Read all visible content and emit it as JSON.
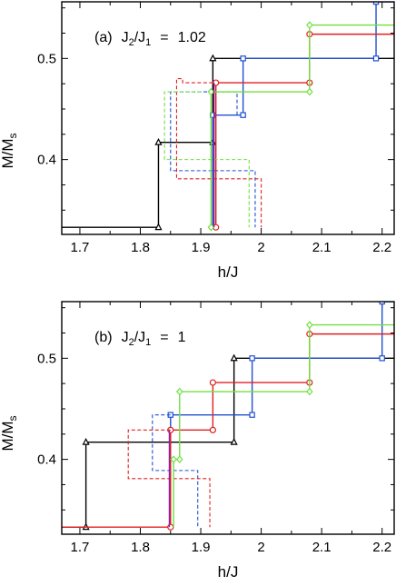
{
  "chart_data": [
    {
      "type": "line",
      "panel": "a",
      "title": {
        "prefix": "(a)",
        "j_main": "J",
        "sub2": "2",
        "slash": "/J",
        "sub1": "1",
        "eq": "=",
        "value": "1.02"
      },
      "xlabel": "h/J",
      "ylabel": {
        "main": "M/M",
        "sub": "s"
      },
      "xlim": [
        1.67,
        2.22
      ],
      "ylim": [
        0.326,
        0.556
      ],
      "xticks": [
        1.7,
        1.8,
        1.9,
        2.0,
        2.1,
        2.2
      ],
      "xtick_labels": [
        "1.7",
        "1.8",
        "1.9",
        "2",
        "2.1",
        "2.2"
      ],
      "yticks": [
        0.4,
        0.5
      ],
      "ytick_labels": [
        "0.4",
        "0.5"
      ],
      "x_minor": 0.05,
      "y_minor": 0.05,
      "series": [
        {
          "color": "#000000",
          "marker": "triangle",
          "dashed": false,
          "x": [
            1.67,
            1.83,
            1.83,
            1.92,
            1.92,
            1.92,
            1.92,
            2.22
          ],
          "y": [
            0.333,
            0.333,
            0.417,
            0.417,
            0.333,
            0.417,
            0.5,
            0.5
          ],
          "markers": [
            [
              1.83,
              0.333
            ],
            [
              1.83,
              0.417
            ],
            [
              1.92,
              0.417
            ],
            [
              1.92,
              0.5
            ]
          ]
        },
        {
          "color": "#2050d0",
          "marker": "square",
          "dashed": false,
          "x": [
            1.92,
            1.92,
            1.97,
            1.97,
            2.19,
            2.19,
            2.22
          ],
          "y": [
            0.333,
            0.444,
            0.444,
            0.5,
            0.5,
            0.556,
            0.556
          ],
          "markers": [
            [
              1.92,
              0.444
            ],
            [
              1.97,
              0.444
            ],
            [
              1.97,
              0.5
            ],
            [
              2.19,
              0.5
            ],
            [
              2.19,
              0.556
            ]
          ]
        },
        {
          "color": "#2050d0",
          "marker": "none",
          "dashed": true,
          "x": [
            1.96,
            1.96,
            1.85,
            1.85,
            1.99,
            1.99
          ],
          "y": [
            0.444,
            0.467,
            0.467,
            0.389,
            0.389,
            0.333
          ],
          "markers": []
        },
        {
          "color": "#e02020",
          "marker": "circle",
          "dashed": false,
          "x": [
            1.925,
            1.925,
            2.08,
            2.08,
            2.22
          ],
          "y": [
            0.333,
            0.476,
            0.476,
            0.524,
            0.524
          ],
          "markers": [
            [
              1.925,
              0.333
            ],
            [
              1.925,
              0.476
            ],
            [
              2.08,
              0.476
            ],
            [
              2.08,
              0.524
            ]
          ]
        },
        {
          "color": "#e02020",
          "marker": "none",
          "dashed": true,
          "x": [
            1.92,
            1.87,
            1.87,
            1.86,
            1.86,
            2.0,
            2.0
          ],
          "y": [
            0.476,
            0.476,
            0.48,
            0.48,
            0.381,
            0.381,
            0.333
          ],
          "markers": []
        },
        {
          "color": "#70e040",
          "marker": "diamond",
          "dashed": false,
          "x": [
            1.917,
            1.917,
            2.08,
            2.08,
            2.22
          ],
          "y": [
            0.333,
            0.467,
            0.467,
            0.533,
            0.533
          ],
          "markers": [
            [
              1.917,
              0.333
            ],
            [
              1.917,
              0.467
            ],
            [
              2.08,
              0.467
            ],
            [
              2.08,
              0.533
            ]
          ]
        },
        {
          "color": "#70e040",
          "marker": "none",
          "dashed": true,
          "x": [
            1.9,
            1.84,
            1.84,
            1.98,
            1.98
          ],
          "y": [
            0.467,
            0.467,
            0.4,
            0.4,
            0.333
          ],
          "markers": []
        },
        {
          "color": "#9020a0",
          "marker": "none",
          "dashed": false,
          "x": [
            1.922,
            1.922
          ],
          "y": [
            0.333,
            0.476
          ],
          "markers": []
        }
      ]
    },
    {
      "type": "line",
      "panel": "b",
      "title": {
        "prefix": "(b)",
        "j_main": "J",
        "sub2": "2",
        "slash": "/J",
        "sub1": "1",
        "eq": "=",
        "value": "1"
      },
      "xlabel": "h/J",
      "ylabel": {
        "main": "M/M",
        "sub": "s"
      },
      "xlim": [
        1.67,
        2.22
      ],
      "ylim": [
        0.326,
        0.556
      ],
      "xticks": [
        1.7,
        1.8,
        1.9,
        2.0,
        2.1,
        2.2
      ],
      "xtick_labels": [
        "1.7",
        "1.8",
        "1.9",
        "2",
        "2.1",
        "2.2"
      ],
      "yticks": [
        0.4,
        0.5
      ],
      "ytick_labels": [
        "0.4",
        "0.5"
      ],
      "x_minor": 0.05,
      "y_minor": 0.05,
      "series": [
        {
          "color": "#000000",
          "marker": "triangle",
          "dashed": false,
          "x": [
            1.67,
            1.71,
            1.71,
            1.955,
            1.955,
            2.22
          ],
          "y": [
            0.333,
            0.333,
            0.417,
            0.417,
            0.5,
            0.5
          ],
          "markers": [
            [
              1.71,
              0.333
            ],
            [
              1.71,
              0.417
            ],
            [
              1.955,
              0.417
            ],
            [
              1.955,
              0.5
            ]
          ]
        },
        {
          "color": "#2050d0",
          "marker": "square",
          "dashed": false,
          "x": [
            1.85,
            1.85,
            1.985,
            1.985,
            2.2,
            2.2,
            2.22
          ],
          "y": [
            0.333,
            0.444,
            0.444,
            0.5,
            0.5,
            0.556,
            0.556
          ],
          "markers": [
            [
              1.85,
              0.444
            ],
            [
              1.985,
              0.444
            ],
            [
              1.985,
              0.5
            ],
            [
              2.2,
              0.5
            ],
            [
              2.2,
              0.556
            ]
          ]
        },
        {
          "color": "#2050d0",
          "marker": "none",
          "dashed": true,
          "x": [
            1.85,
            1.82,
            1.82,
            1.895,
            1.895
          ],
          "y": [
            0.444,
            0.444,
            0.389,
            0.389,
            0.333
          ],
          "markers": []
        },
        {
          "color": "#e02020",
          "marker": "circle",
          "dashed": false,
          "x": [
            1.67,
            1.85,
            1.85,
            1.92,
            1.92,
            2.08,
            2.08,
            2.22
          ],
          "y": [
            0.333,
            0.333,
            0.429,
            0.429,
            0.476,
            0.476,
            0.524,
            0.524
          ],
          "markers": [
            [
              1.85,
              0.333
            ],
            [
              1.85,
              0.429
            ],
            [
              1.92,
              0.429
            ],
            [
              1.92,
              0.476
            ],
            [
              2.08,
              0.476
            ],
            [
              2.08,
              0.524
            ]
          ]
        },
        {
          "color": "#e02020",
          "marker": "none",
          "dashed": true,
          "x": [
            1.85,
            1.78,
            1.78,
            1.915,
            1.915
          ],
          "y": [
            0.429,
            0.429,
            0.381,
            0.381,
            0.333
          ],
          "markers": []
        },
        {
          "color": "#70e040",
          "marker": "diamond",
          "dashed": false,
          "x": [
            1.855,
            1.855,
            1.865,
            1.865,
            2.08,
            2.08,
            2.22
          ],
          "y": [
            0.333,
            0.4,
            0.4,
            0.467,
            0.467,
            0.533,
            0.533
          ],
          "markers": [
            [
              1.855,
              0.4
            ],
            [
              1.865,
              0.4
            ],
            [
              1.865,
              0.467
            ],
            [
              2.08,
              0.467
            ],
            [
              2.08,
              0.533
            ]
          ]
        },
        {
          "color": "#9020a0",
          "marker": "none",
          "dashed": false,
          "x": [
            1.848,
            1.848
          ],
          "y": [
            0.333,
            0.429
          ],
          "markers": []
        }
      ]
    }
  ]
}
